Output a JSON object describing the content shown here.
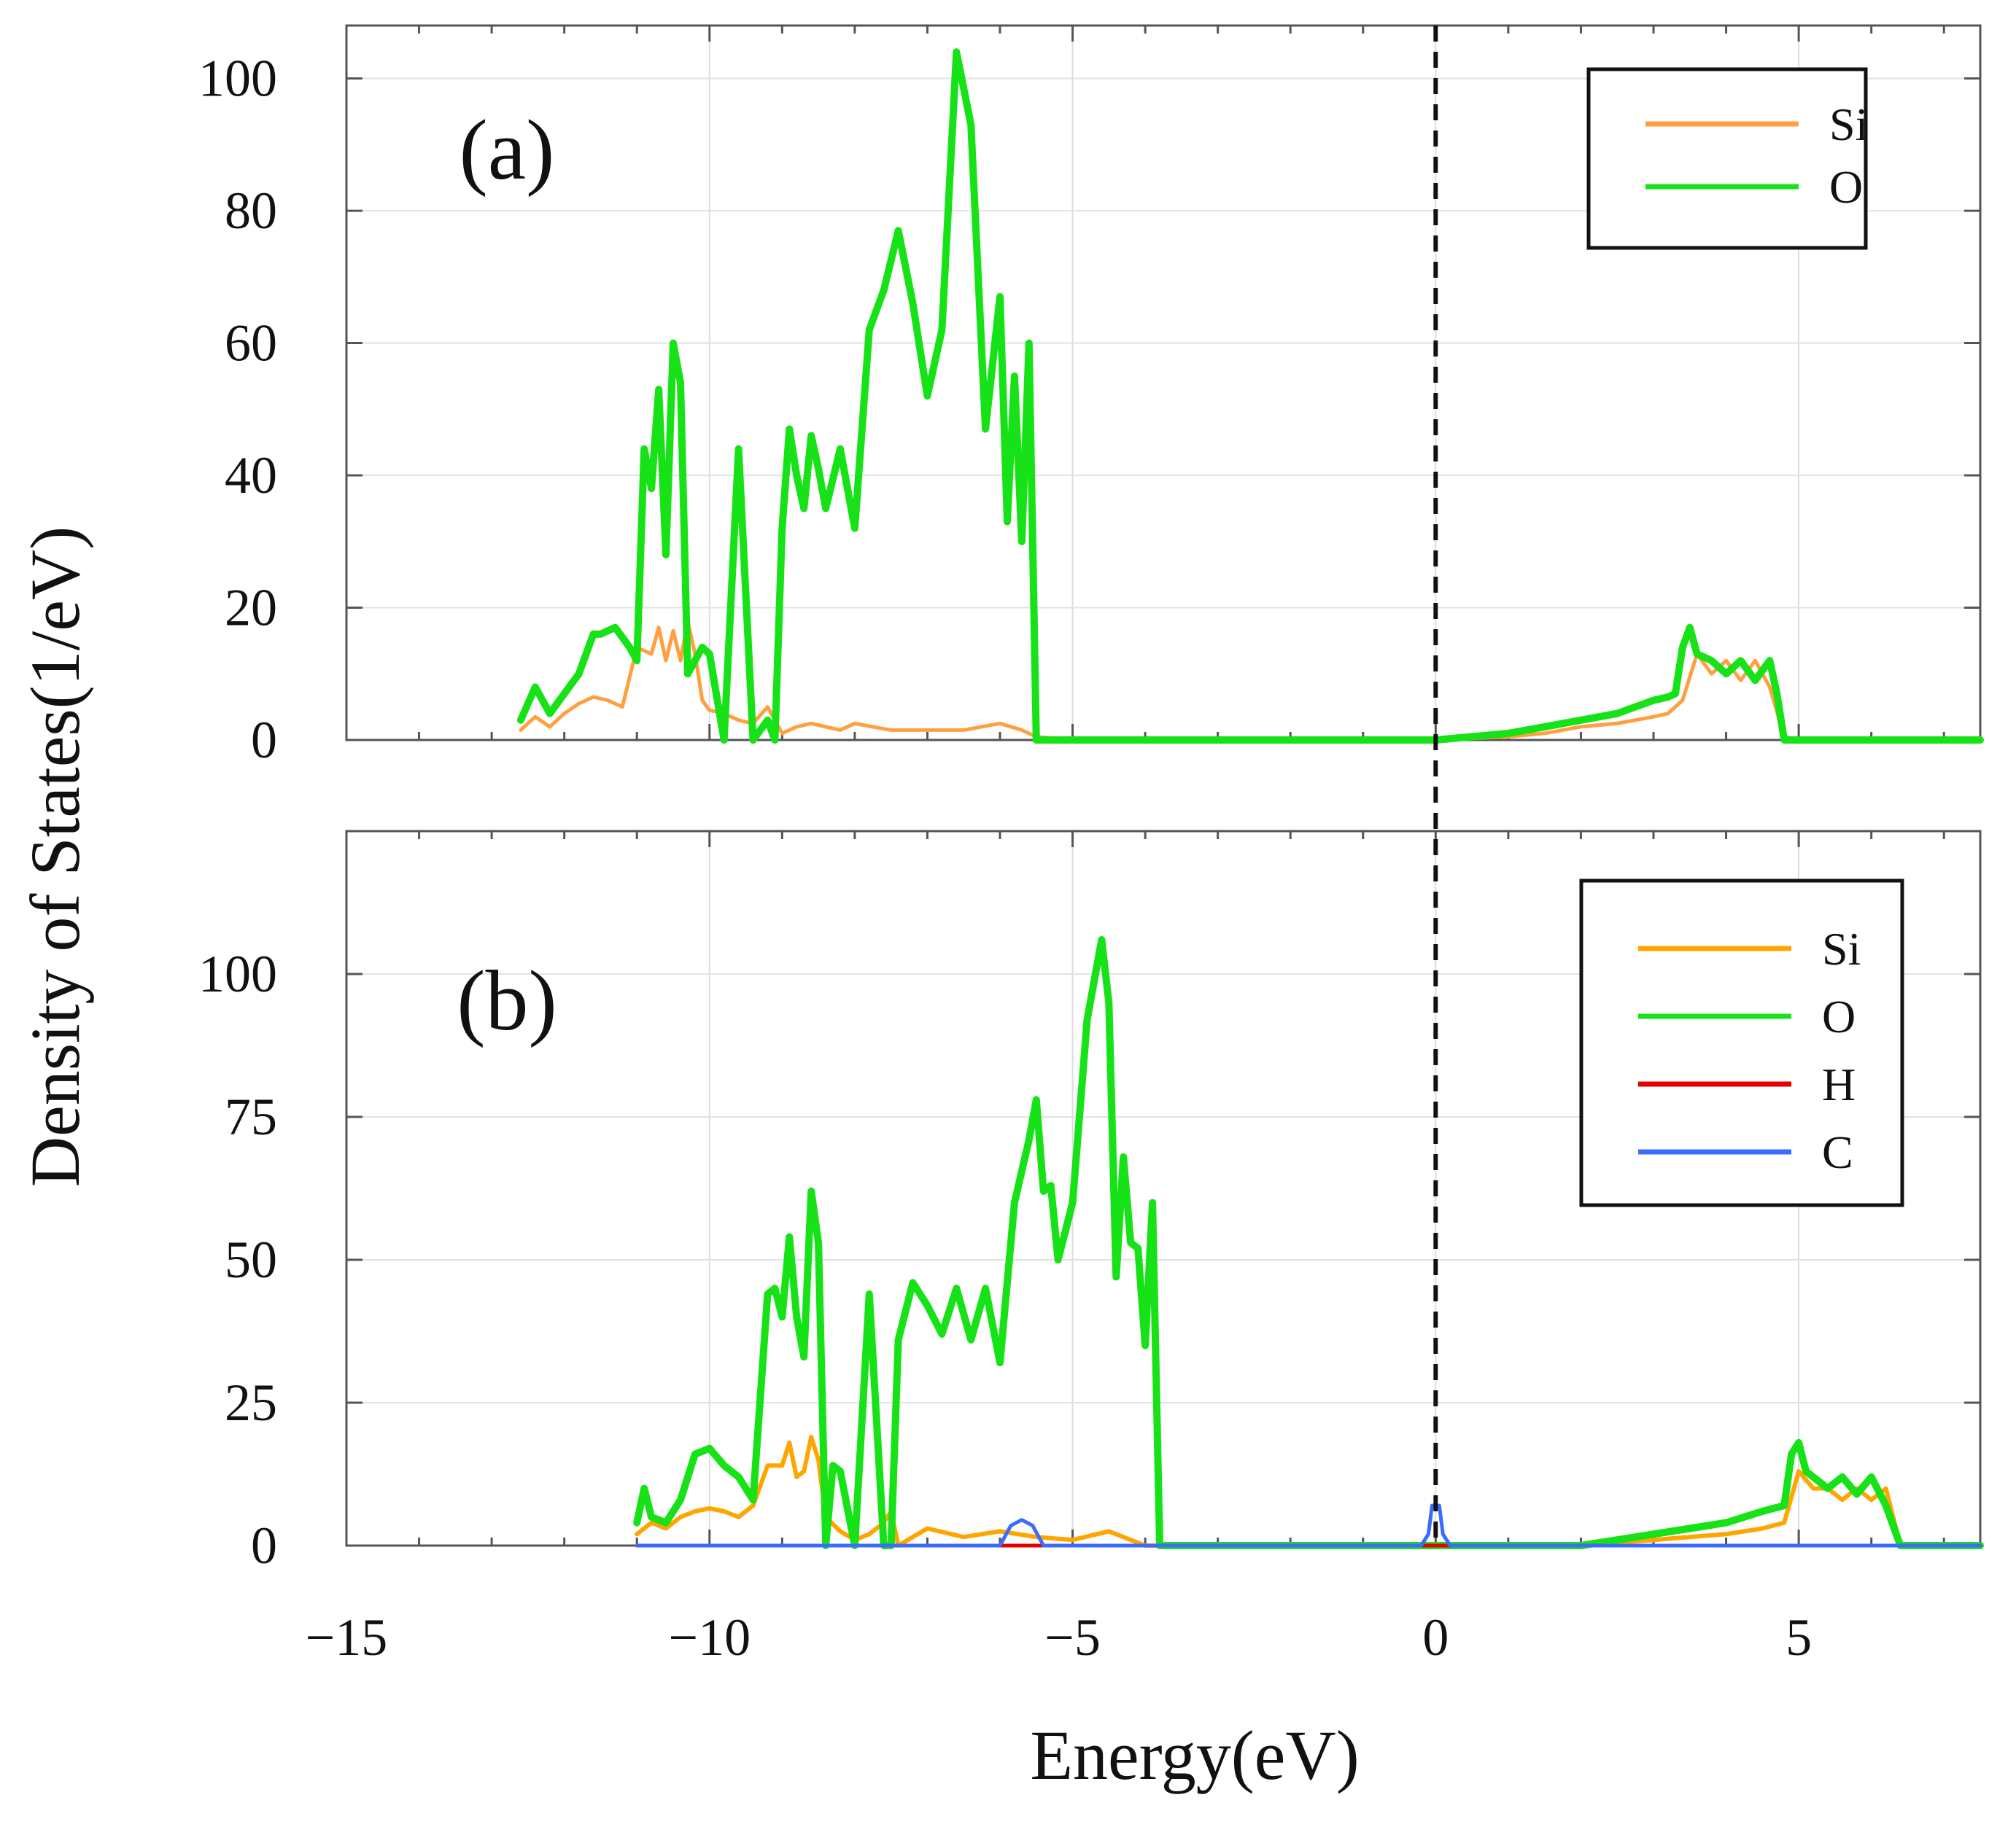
{
  "ylabel": "Density of States(1/eV)",
  "xlabel": "Energy(eV)",
  "chart_data": [
    {
      "type": "line",
      "panel": "(a)",
      "xlim": [
        -15,
        7.5
      ],
      "ylim": [
        0,
        108
      ],
      "fermi_level": 0,
      "yticks": [
        0,
        20,
        40,
        60,
        80,
        100
      ],
      "xticks": [
        -15,
        -10,
        -5,
        0,
        5
      ],
      "legend": {
        "position": "top-right",
        "entries": [
          "Si",
          "O"
        ]
      },
      "series": [
        {
          "name": "Si",
          "color": "#ffa040",
          "width": 5,
          "x": [
            -12.6,
            -12.4,
            -12.2,
            -12.0,
            -11.8,
            -11.6,
            -11.4,
            -11.2,
            -11.0,
            -10.8,
            -10.7,
            -10.6,
            -10.5,
            -10.4,
            -10.3,
            -10.2,
            -10.1,
            -10.0,
            -9.8,
            -9.6,
            -9.4,
            -9.2,
            -9.0,
            -8.8,
            -8.6,
            -8.4,
            -8.2,
            -8.0,
            -7.5,
            -7.0,
            -6.5,
            -6.0,
            -5.7,
            -5.5,
            -5.0,
            -4.0,
            -2.0,
            0.0,
            1.0,
            1.5,
            2.0,
            2.5,
            3.0,
            3.2,
            3.4,
            3.6,
            3.8,
            4.0,
            4.2,
            4.4,
            4.6,
            4.8,
            5.0,
            5.2,
            6.0,
            7.5
          ],
          "y": [
            1.5,
            3.5,
            2.0,
            4.0,
            5.5,
            6.5,
            6.0,
            5.0,
            14.0,
            13.0,
            17.0,
            12.0,
            16.5,
            12.0,
            18.0,
            13.0,
            6.0,
            4.5,
            4.0,
            3.0,
            2.5,
            5.0,
            1.0,
            2.0,
            2.5,
            2.0,
            1.5,
            2.5,
            1.5,
            1.5,
            1.5,
            2.5,
            1.5,
            0.5,
            0.0,
            0.0,
            0.0,
            0.0,
            0.5,
            1.0,
            2.0,
            2.5,
            3.5,
            4.0,
            6.0,
            13.0,
            10.0,
            12.0,
            9.0,
            12.0,
            8.0,
            0.5,
            0.0,
            0.0,
            0.0,
            0.0
          ]
        },
        {
          "name": "O",
          "color": "#17e117",
          "width": 10,
          "x": [
            -12.6,
            -12.4,
            -12.2,
            -12.0,
            -11.8,
            -11.6,
            -11.5,
            -11.3,
            -11.1,
            -11.0,
            -10.9,
            -10.8,
            -10.7,
            -10.6,
            -10.5,
            -10.4,
            -10.3,
            -10.2,
            -10.1,
            -10.0,
            -9.8,
            -9.6,
            -9.4,
            -9.2,
            -9.1,
            -9.0,
            -8.9,
            -8.8,
            -8.7,
            -8.6,
            -8.5,
            -8.4,
            -8.2,
            -8.0,
            -7.8,
            -7.6,
            -7.4,
            -7.2,
            -7.0,
            -6.8,
            -6.6,
            -6.4,
            -6.2,
            -6.0,
            -5.9,
            -5.8,
            -5.7,
            -5.6,
            -5.5,
            -5.4,
            -5.3,
            -5.2,
            -5.1,
            -4.9,
            -4.7,
            -4.5,
            -4.0,
            -2.0,
            0.0,
            0.5,
            1.0,
            1.5,
            2.0,
            2.5,
            3.0,
            3.2,
            3.3,
            3.4,
            3.5,
            3.6,
            3.8,
            4.0,
            4.2,
            4.4,
            4.6,
            4.7,
            4.8,
            5.0,
            6.0,
            7.5
          ],
          "y": [
            3.0,
            8.0,
            4.0,
            7.0,
            10.0,
            16.0,
            16.0,
            17.0,
            14.0,
            12.0,
            44.0,
            38.0,
            53.0,
            28.0,
            60.0,
            54.0,
            10.0,
            12.0,
            14.0,
            13.0,
            0.0,
            44.0,
            0.0,
            3.0,
            0.0,
            32.0,
            47.0,
            40.0,
            35.0,
            46.0,
            41.0,
            35.0,
            44.0,
            32.0,
            62.0,
            68.0,
            77.0,
            66.0,
            52.0,
            62.0,
            104.0,
            93.0,
            47.0,
            67.0,
            33.0,
            55.0,
            30.0,
            60.0,
            0.0,
            0.0,
            0.0,
            0.0,
            0.0,
            0.0,
            0.0,
            0.0,
            0.0,
            0.0,
            0.0,
            0.5,
            1.0,
            2.0,
            3.0,
            4.0,
            6.0,
            6.5,
            7.0,
            14.0,
            17.0,
            13.0,
            12.0,
            10.0,
            12.0,
            9.0,
            12.0,
            7.0,
            0.0,
            0.0,
            0.0,
            0.0
          ]
        }
      ]
    },
    {
      "type": "line",
      "panel": "(b)",
      "xlim": [
        -15,
        7.5
      ],
      "ylim": [
        0,
        125
      ],
      "fermi_level": 0,
      "yticks": [
        0,
        25,
        50,
        75,
        100
      ],
      "xticks": [
        -15,
        -10,
        -5,
        0,
        5
      ],
      "legend": {
        "position": "top-right",
        "entries": [
          "Si",
          "O",
          "H",
          "C"
        ]
      },
      "series": [
        {
          "name": "Si",
          "color": "#ffa500",
          "width": 6,
          "x": [
            -11.0,
            -10.8,
            -10.6,
            -10.4,
            -10.2,
            -10.0,
            -9.8,
            -9.6,
            -9.4,
            -9.2,
            -9.0,
            -8.9,
            -8.8,
            -8.7,
            -8.6,
            -8.5,
            -8.4,
            -8.2,
            -8.0,
            -7.8,
            -7.6,
            -7.5,
            -7.4,
            -7.0,
            -6.5,
            -6.0,
            -5.5,
            -5.0,
            -4.5,
            -4.0,
            -2.0,
            0.0,
            2.0,
            2.5,
            3.0,
            3.5,
            4.0,
            4.5,
            4.8,
            5.0,
            5.2,
            5.4,
            5.6,
            5.8,
            6.0,
            6.2,
            6.4,
            7.5
          ],
          "y": [
            2.0,
            4.0,
            3.0,
            5.0,
            6.0,
            6.5,
            6.0,
            5.0,
            7.0,
            14.0,
            14.0,
            18.0,
            12.0,
            13.0,
            19.0,
            15.0,
            5.0,
            2.5,
            1.0,
            2.0,
            4.0,
            6.0,
            0.0,
            3.0,
            1.5,
            2.5,
            1.5,
            1.0,
            2.5,
            0.0,
            0.0,
            0.0,
            0.0,
            0.5,
            1.0,
            1.5,
            2.0,
            3.0,
            4.0,
            13.0,
            10.0,
            10.0,
            8.0,
            10.0,
            8.0,
            10.0,
            0.0,
            0.0
          ]
        },
        {
          "name": "O",
          "color": "#17e117",
          "width": 10,
          "x": [
            -11.0,
            -10.9,
            -10.8,
            -10.6,
            -10.4,
            -10.2,
            -10.0,
            -9.8,
            -9.6,
            -9.4,
            -9.2,
            -9.1,
            -9.0,
            -8.9,
            -8.8,
            -8.7,
            -8.6,
            -8.5,
            -8.4,
            -8.3,
            -8.2,
            -8.0,
            -7.8,
            -7.6,
            -7.5,
            -7.4,
            -7.2,
            -7.0,
            -6.8,
            -6.6,
            -6.4,
            -6.2,
            -6.0,
            -5.8,
            -5.6,
            -5.5,
            -5.4,
            -5.3,
            -5.2,
            -5.0,
            -4.8,
            -4.6,
            -4.5,
            -4.4,
            -4.3,
            -4.2,
            -4.1,
            -4.0,
            -3.9,
            -3.8,
            -3.0,
            -1.0,
            0.0,
            1.0,
            2.0,
            2.5,
            3.0,
            3.5,
            4.0,
            4.5,
            4.8,
            4.9,
            5.0,
            5.1,
            5.2,
            5.4,
            5.6,
            5.8,
            6.0,
            6.2,
            6.4,
            7.5
          ],
          "y": [
            4.0,
            10.0,
            5.0,
            4.0,
            8.0,
            16.0,
            17.0,
            14.0,
            12.0,
            8.0,
            44.0,
            45.0,
            40.0,
            54.0,
            40.0,
            33.0,
            62.0,
            53.0,
            0.0,
            14.0,
            13.0,
            0.0,
            44.0,
            0.0,
            0.0,
            36.0,
            46.0,
            42.0,
            37.0,
            45.0,
            36.0,
            45.0,
            32.0,
            60.0,
            71.0,
            78.0,
            62.0,
            63.0,
            50.0,
            60.0,
            92.0,
            106.0,
            95.0,
            47.0,
            68.0,
            53.0,
            52.0,
            35.0,
            60.0,
            0.0,
            0.0,
            0.0,
            0.0,
            0.0,
            0.0,
            1.0,
            2.0,
            3.0,
            4.0,
            6.0,
            7.0,
            16.0,
            18.0,
            13.0,
            12.0,
            10.0,
            12.0,
            9.0,
            12.0,
            7.0,
            0.0,
            0.0
          ]
        },
        {
          "name": "H",
          "color": "#e60000",
          "width": 5,
          "x": [
            -11.0,
            7.5
          ],
          "y": [
            0.0,
            0.0
          ]
        },
        {
          "name": "C",
          "color": "#3b6bff",
          "width": 5,
          "x": [
            -11.0,
            -6.0,
            -5.85,
            -5.7,
            -5.55,
            -5.4,
            -4.0,
            -0.2,
            -0.1,
            -0.05,
            0.05,
            0.1,
            0.2,
            2.0,
            7.5
          ],
          "y": [
            0.0,
            0.0,
            3.5,
            4.5,
            3.5,
            0.0,
            0.0,
            0.0,
            2.0,
            7.0,
            7.0,
            2.0,
            0.0,
            0.0,
            0.0
          ]
        }
      ]
    }
  ]
}
